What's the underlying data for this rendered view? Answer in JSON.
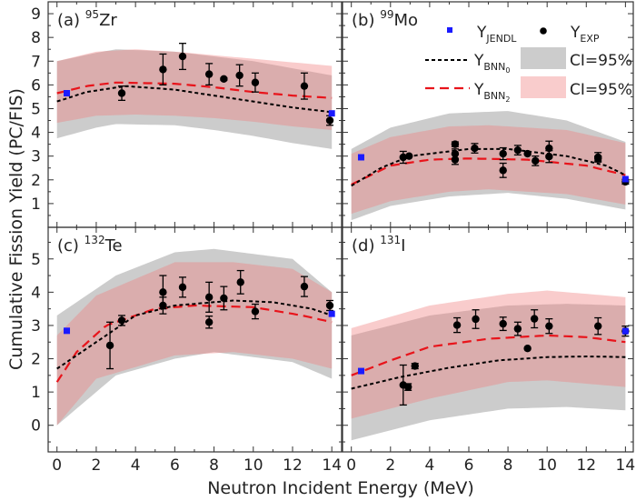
{
  "chart_data": {
    "type": "scatter",
    "xlabel": "Neutron Incident Energy (MeV)",
    "ylabel": "Cumulative Fission Yield (PC/FIS)",
    "legend": {
      "placement": "panel-b top-right",
      "entries": [
        {
          "base": "Y",
          "sub": "JENDL",
          "marker": "blue-square"
        },
        {
          "base": "Y",
          "sub": "EXP",
          "marker": "black-circle"
        },
        {
          "base": "Y",
          "sub": "BNN",
          "subsub": "0",
          "marker": "black-dotted-line"
        },
        {
          "label": "CI=95%",
          "marker": "gray-band"
        },
        {
          "base": "Y",
          "sub": "BNN",
          "subsub": "2",
          "marker": "red-dashed-line"
        },
        {
          "label": "CI=95%",
          "marker": "pink-band"
        }
      ]
    },
    "colors": {
      "jendl": "#1a1aff",
      "exp": "#000000",
      "bnn0": "#000000",
      "bnn2": "#e8141b",
      "ci0": "#cccccc",
      "ci2": "#f08080"
    },
    "panels": [
      {
        "tag": "(a)",
        "mass": "95",
        "element": "Zr",
        "xlim": [
          -0.45,
          14.5
        ],
        "ylim": [
          0,
          9.5
        ],
        "yticks": [
          1,
          2,
          3,
          4,
          5,
          6,
          7,
          8,
          9
        ],
        "xticks": [],
        "jendl": [
          [
            0.5,
            5.65
          ],
          [
            14,
            4.8
          ]
        ],
        "exp": [
          [
            3.3,
            5.65,
            0.3
          ],
          [
            5.4,
            6.65,
            0.65
          ],
          [
            6.4,
            7.2,
            0.55
          ],
          [
            7.75,
            6.45,
            0.45
          ],
          [
            8.5,
            6.25,
            0.05
          ],
          [
            9.3,
            6.4,
            0.45
          ],
          [
            10.1,
            6.1,
            0.4
          ],
          [
            12.6,
            5.95,
            0.55
          ],
          [
            13.9,
            4.5,
            0.2
          ]
        ],
        "bnn0": [
          [
            0,
            5.3
          ],
          [
            1.5,
            5.7
          ],
          [
            3.5,
            5.95
          ],
          [
            6,
            5.8
          ],
          [
            8,
            5.55
          ],
          [
            10,
            5.3
          ],
          [
            12,
            5.05
          ],
          [
            14,
            4.85
          ]
        ],
        "bnn2": [
          [
            0,
            5.65
          ],
          [
            1.5,
            5.95
          ],
          [
            3,
            6.1
          ],
          [
            6,
            6.05
          ],
          [
            8,
            5.9
          ],
          [
            10,
            5.7
          ],
          [
            12,
            5.55
          ],
          [
            14,
            5.45
          ]
        ],
        "ci0": {
          "x": [
            0,
            2,
            3,
            6,
            8,
            10,
            12,
            14
          ],
          "lo": [
            3.75,
            4.2,
            4.35,
            4.3,
            4.1,
            3.85,
            3.55,
            3.3
          ],
          "hi": [
            7.0,
            7.35,
            7.5,
            7.4,
            7.2,
            7.0,
            6.7,
            6.4
          ]
        },
        "ci2": {
          "x": [
            0,
            2,
            4,
            6,
            8,
            10,
            12,
            14
          ],
          "lo": [
            4.4,
            4.7,
            4.75,
            4.7,
            4.6,
            4.45,
            4.25,
            4.1
          ],
          "hi": [
            7.0,
            7.4,
            7.5,
            7.4,
            7.25,
            7.1,
            6.95,
            6.8
          ]
        }
      },
      {
        "tag": "(b)",
        "mass": "99",
        "element": "Mo",
        "xlim": [
          -0.45,
          14.4
        ],
        "ylim": [
          0,
          9.5
        ],
        "yticks": [],
        "xticks": [],
        "jendl": [
          [
            0.5,
            2.95
          ],
          [
            14,
            2.03
          ]
        ],
        "exp": [
          [
            2.65,
            2.95,
            0.25
          ],
          [
            2.95,
            3.0,
            0
          ],
          [
            5.3,
            3.5,
            0.1
          ],
          [
            5.3,
            3.1,
            0.2
          ],
          [
            5.3,
            2.85,
            0.2
          ],
          [
            6.3,
            3.33,
            0.2
          ],
          [
            7.75,
            3.1,
            0.25
          ],
          [
            7.75,
            2.4,
            0.3
          ],
          [
            8.5,
            3.25,
            0.2
          ],
          [
            9.0,
            3.1,
            0
          ],
          [
            9.4,
            2.8,
            0.2
          ],
          [
            10.1,
            3.33,
            0.3
          ],
          [
            10.1,
            2.98,
            0.25
          ],
          [
            12.6,
            2.95,
            0.2
          ],
          [
            12.6,
            2.9,
            0.1
          ],
          [
            14,
            1.92,
            0.1
          ]
        ],
        "bnn0": [
          [
            0,
            1.75
          ],
          [
            1.5,
            2.5
          ],
          [
            3,
            3.0
          ],
          [
            6,
            3.3
          ],
          [
            8,
            3.3
          ],
          [
            11,
            3.0
          ],
          [
            13,
            2.6
          ],
          [
            14,
            2.2
          ]
        ],
        "bnn2": [
          [
            0,
            1.8
          ],
          [
            2,
            2.6
          ],
          [
            4,
            2.85
          ],
          [
            6,
            2.9
          ],
          [
            9,
            2.85
          ],
          [
            12,
            2.6
          ],
          [
            14,
            2.2
          ]
        ],
        "ci0": {
          "x": [
            0,
            2,
            5,
            8,
            11,
            14
          ],
          "lo": [
            0.3,
            0.9,
            1.3,
            1.45,
            1.2,
            0.75
          ],
          "hi": [
            3.3,
            4.2,
            4.8,
            4.9,
            4.5,
            3.6
          ]
        },
        "ci2": {
          "x": [
            0,
            2,
            5,
            7,
            11,
            14
          ],
          "lo": [
            0.57,
            1.1,
            1.5,
            1.6,
            1.4,
            0.96
          ],
          "hi": [
            3.1,
            3.8,
            4.25,
            4.3,
            4.1,
            3.55
          ]
        }
      },
      {
        "tag": "(c)",
        "mass": "132",
        "element": "Te",
        "xlim": [
          -0.45,
          14.5
        ],
        "ylim": [
          -0.8,
          5.95
        ],
        "yticks": [
          0,
          1,
          2,
          3,
          4,
          5
        ],
        "xticks": [
          0,
          2,
          4,
          6,
          8,
          10,
          12,
          14
        ],
        "jendl": [
          [
            0.5,
            2.84
          ],
          [
            14,
            3.35
          ]
        ],
        "exp": [
          [
            2.7,
            2.4,
            0.7
          ],
          [
            3.3,
            3.15,
            0.15
          ],
          [
            5.4,
            4.0,
            0.5
          ],
          [
            5.4,
            3.6,
            0.25
          ],
          [
            6.4,
            4.15,
            0.3
          ],
          [
            7.75,
            3.85,
            0.45
          ],
          [
            7.75,
            3.1,
            0.18
          ],
          [
            8.5,
            3.82,
            0.35
          ],
          [
            9.35,
            4.3,
            0.35
          ],
          [
            10.1,
            3.42,
            0.22
          ],
          [
            12.6,
            4.17,
            0.3
          ],
          [
            13.9,
            3.6,
            0.15
          ]
        ],
        "bnn0": [
          [
            0,
            1.7
          ],
          [
            2,
            2.5
          ],
          [
            4,
            3.3
          ],
          [
            6,
            3.6
          ],
          [
            9,
            3.75
          ],
          [
            11,
            3.7
          ],
          [
            13,
            3.5
          ],
          [
            14,
            3.3
          ]
        ],
        "bnn2": [
          [
            0,
            1.3
          ],
          [
            1,
            2.2
          ],
          [
            2.5,
            3.0
          ],
          [
            5,
            3.5
          ],
          [
            7,
            3.6
          ],
          [
            10,
            3.55
          ],
          [
            12.5,
            3.3
          ],
          [
            14,
            3.1
          ]
        ],
        "ci0": {
          "x": [
            0,
            3,
            6,
            8,
            12,
            14
          ],
          "lo": [
            0.0,
            1.5,
            2.0,
            2.2,
            1.9,
            1.4
          ],
          "hi": [
            3.3,
            4.5,
            5.2,
            5.3,
            5.0,
            4.0
          ]
        },
        "ci2": {
          "x": [
            0,
            2,
            6,
            9,
            12,
            14
          ],
          "lo": [
            0.0,
            1.4,
            2.1,
            2.2,
            2.0,
            1.7
          ],
          "hi": [
            2.7,
            3.9,
            4.9,
            4.9,
            4.7,
            4.0
          ]
        }
      },
      {
        "tag": "(d)",
        "mass": "131",
        "element": "I",
        "xlim": [
          -0.45,
          14.4
        ],
        "ylim": [
          -0.8,
          5.95
        ],
        "yticks": [],
        "xticks": [
          0,
          2,
          4,
          6,
          8,
          10,
          12,
          14
        ],
        "jendl": [
          [
            0.5,
            1.63
          ],
          [
            14,
            2.83
          ]
        ],
        "exp": [
          [
            2.65,
            1.21,
            0.6
          ],
          [
            2.9,
            1.15,
            0.1
          ],
          [
            3.25,
            1.78,
            0.08
          ],
          [
            5.4,
            3.01,
            0.22
          ],
          [
            6.35,
            3.19,
            0.28
          ],
          [
            7.75,
            3.05,
            0.2
          ],
          [
            8.5,
            2.9,
            0.2
          ],
          [
            9.0,
            2.31,
            0
          ],
          [
            9.35,
            3.2,
            0.27
          ],
          [
            10.1,
            2.98,
            0.22
          ],
          [
            12.6,
            2.98,
            0.25
          ],
          [
            14,
            2.83,
            0.15
          ]
        ],
        "bnn0": [
          [
            0,
            1.1
          ],
          [
            2.5,
            1.45
          ],
          [
            5,
            1.73
          ],
          [
            7.5,
            1.95
          ],
          [
            10,
            2.05
          ],
          [
            12,
            2.07
          ],
          [
            14,
            2.05
          ]
        ],
        "bnn2": [
          [
            0,
            1.5
          ],
          [
            2,
            1.95
          ],
          [
            4,
            2.36
          ],
          [
            7,
            2.6
          ],
          [
            10,
            2.7
          ],
          [
            12,
            2.65
          ],
          [
            14,
            2.5
          ]
        ],
        "ci0": {
          "x": [
            0,
            4,
            8,
            11,
            14
          ],
          "lo": [
            -0.45,
            0.15,
            0.5,
            0.55,
            0.45
          ],
          "hi": [
            2.7,
            3.3,
            3.6,
            3.65,
            3.6
          ]
        },
        "ci2": {
          "x": [
            0,
            4,
            8,
            10,
            14
          ],
          "lo": [
            0.2,
            0.8,
            1.3,
            1.35,
            1.15
          ],
          "hi": [
            2.92,
            3.6,
            3.95,
            4.05,
            3.85
          ]
        }
      }
    ]
  }
}
